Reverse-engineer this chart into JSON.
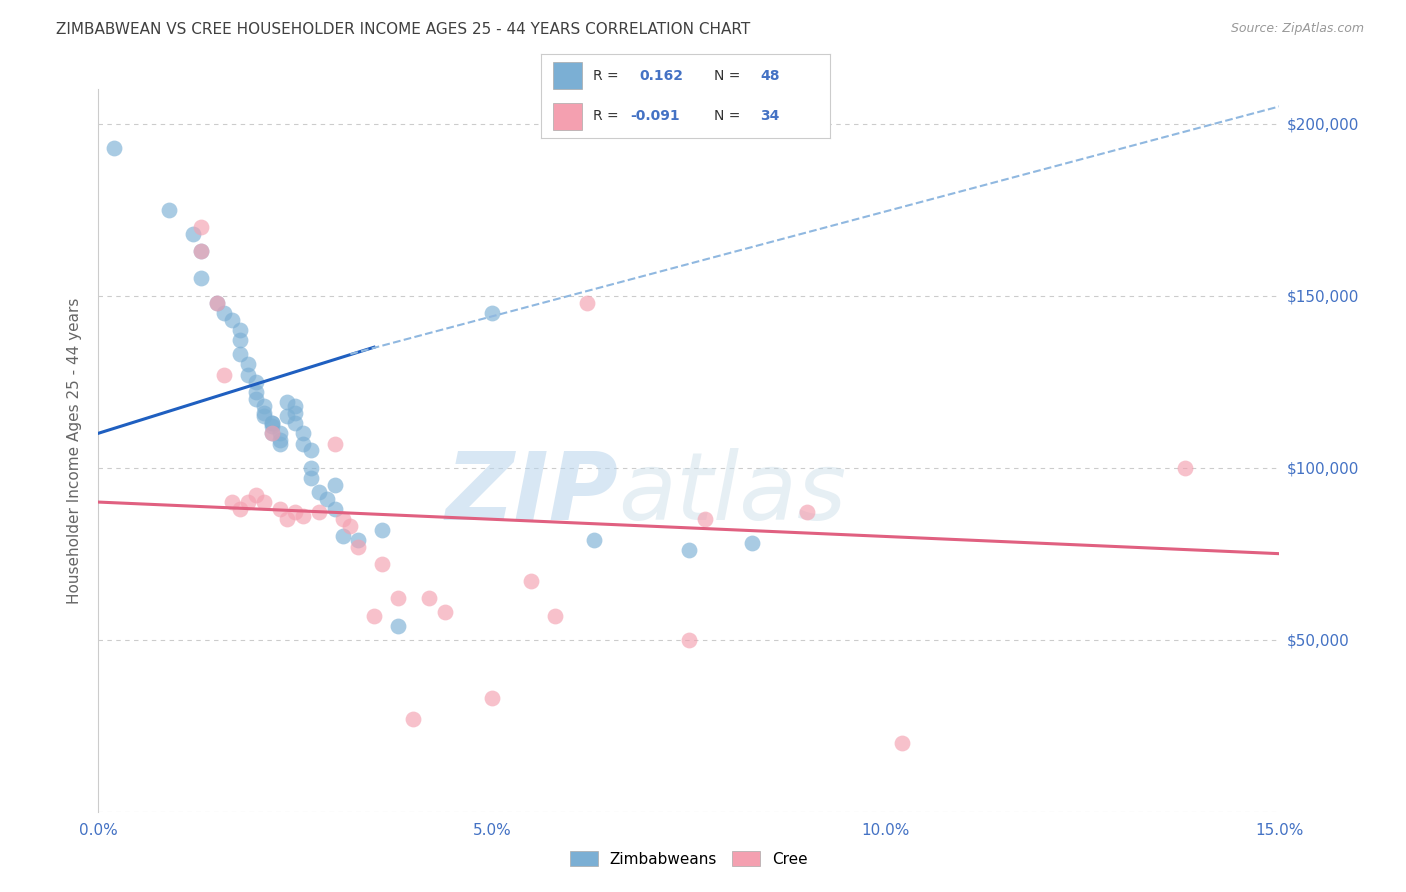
{
  "title": "ZIMBABWEAN VS CREE HOUSEHOLDER INCOME AGES 25 - 44 YEARS CORRELATION CHART",
  "source": "Source: ZipAtlas.com",
  "ylabel": "Householder Income Ages 25 - 44 years",
  "xlim": [
    0.0,
    0.15
  ],
  "ylim": [
    0,
    210000
  ],
  "xticks": [
    0.0,
    0.025,
    0.05,
    0.075,
    0.1,
    0.125,
    0.15
  ],
  "xticklabels": [
    "0.0%",
    "",
    "5.0%",
    "",
    "10.0%",
    "",
    "15.0%"
  ],
  "yticks": [
    0,
    50000,
    100000,
    150000,
    200000
  ],
  "yticklabels": [
    "",
    "$50,000",
    "$100,000",
    "$150,000",
    "$200,000"
  ],
  "watermark_zip": "ZIP",
  "watermark_atlas": "atlas",
  "zimbabwean_color": "#7bafd4",
  "cree_color": "#f4a0b0",
  "zimbabwean_R": "0.162",
  "zimbabwean_N": "48",
  "cree_R": "-0.091",
  "cree_N": "34",
  "blue_line_x": [
    0.0,
    0.035
  ],
  "blue_line_y": [
    110000,
    135000
  ],
  "dashed_line_x": [
    0.032,
    0.15
  ],
  "dashed_line_y": [
    133000,
    205000
  ],
  "pink_line_x": [
    0.0,
    0.15
  ],
  "pink_line_y": [
    90000,
    75000
  ],
  "zimbabwean_x": [
    0.002,
    0.009,
    0.012,
    0.013,
    0.013,
    0.015,
    0.016,
    0.017,
    0.018,
    0.018,
    0.018,
    0.019,
    0.019,
    0.02,
    0.02,
    0.02,
    0.021,
    0.021,
    0.021,
    0.022,
    0.022,
    0.022,
    0.022,
    0.023,
    0.023,
    0.023,
    0.024,
    0.024,
    0.025,
    0.025,
    0.025,
    0.026,
    0.026,
    0.027,
    0.027,
    0.027,
    0.028,
    0.029,
    0.03,
    0.03,
    0.031,
    0.033,
    0.036,
    0.038,
    0.05,
    0.063,
    0.075,
    0.083
  ],
  "zimbabwean_y": [
    193000,
    175000,
    168000,
    163000,
    155000,
    148000,
    145000,
    143000,
    140000,
    137000,
    133000,
    130000,
    127000,
    125000,
    122000,
    120000,
    118000,
    116000,
    115000,
    113000,
    113000,
    112000,
    110000,
    110000,
    108000,
    107000,
    119000,
    115000,
    118000,
    116000,
    113000,
    110000,
    107000,
    105000,
    100000,
    97000,
    93000,
    91000,
    95000,
    88000,
    80000,
    79000,
    82000,
    54000,
    145000,
    79000,
    76000,
    78000
  ],
  "cree_x": [
    0.013,
    0.013,
    0.015,
    0.016,
    0.017,
    0.018,
    0.019,
    0.02,
    0.021,
    0.022,
    0.023,
    0.024,
    0.025,
    0.026,
    0.028,
    0.03,
    0.031,
    0.032,
    0.033,
    0.035,
    0.036,
    0.038,
    0.04,
    0.042,
    0.044,
    0.05,
    0.055,
    0.058,
    0.062,
    0.075,
    0.077,
    0.09,
    0.102,
    0.138
  ],
  "cree_y": [
    170000,
    163000,
    148000,
    127000,
    90000,
    88000,
    90000,
    92000,
    90000,
    110000,
    88000,
    85000,
    87000,
    86000,
    87000,
    107000,
    85000,
    83000,
    77000,
    57000,
    72000,
    62000,
    27000,
    62000,
    58000,
    33000,
    67000,
    57000,
    148000,
    50000,
    85000,
    87000,
    20000,
    100000
  ],
  "background_color": "#ffffff",
  "grid_color": "#cccccc",
  "title_color": "#404040",
  "axis_label_color": "#666666",
  "tick_label_color": "#4472c4",
  "legend_R_color": "#4472c4",
  "line_blue_color": "#1f5fc0",
  "line_pink_color": "#e06080",
  "dashed_line_color": "#90b8e0"
}
